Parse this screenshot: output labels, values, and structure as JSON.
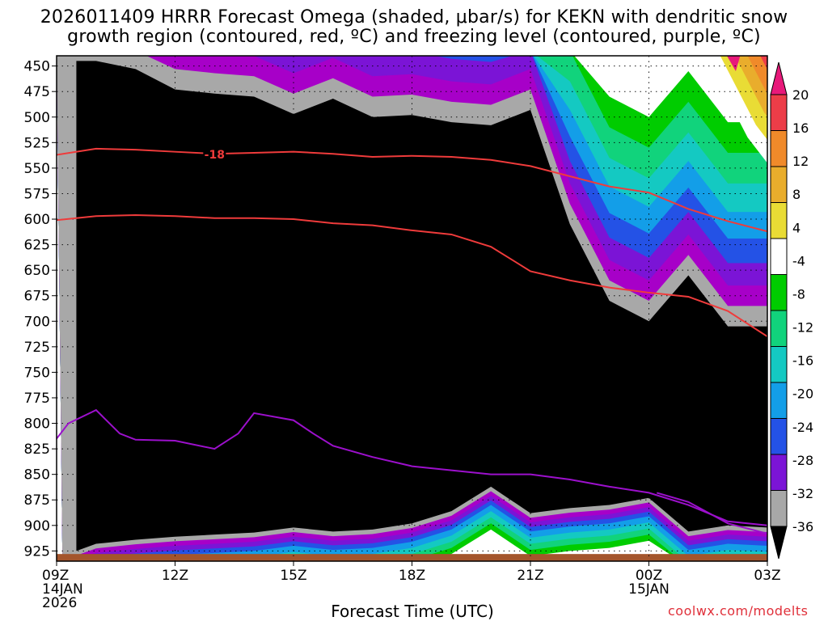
{
  "chart_data": {
    "type": "time-height contour",
    "title_line1": "2026011409 HRRR Forecast Omega (shaded, μbar/s) for KEKN with dendritic snow",
    "title_line2": "growth region (contoured, red, ºC) and freezing level (contoured, purple, ºC)",
    "xlabel": "Forecast Time (UTC)",
    "credit": "coolwx.com/modelts",
    "x_hours": [
      9,
      27
    ],
    "y_range_hpa": [
      440,
      935
    ],
    "y_ticks": [
      "450",
      "475",
      "500",
      "525",
      "550",
      "575",
      "600",
      "625",
      "650",
      "675",
      "700",
      "725",
      "750",
      "775",
      "800",
      "825",
      "850",
      "875",
      "900",
      "925"
    ],
    "x_ticks": [
      {
        "hour": 9,
        "label": "09Z",
        "sub": [
          "14JAN",
          "2026"
        ]
      },
      {
        "hour": 12,
        "label": "12Z",
        "sub": []
      },
      {
        "hour": 15,
        "label": "15Z",
        "sub": []
      },
      {
        "hour": 18,
        "label": "18Z",
        "sub": []
      },
      {
        "hour": 21,
        "label": "21Z",
        "sub": []
      },
      {
        "hour": 24,
        "label": "00Z",
        "sub": [
          "15JAN"
        ]
      },
      {
        "hour": 27,
        "label": "03Z",
        "sub": []
      }
    ],
    "colorbar": {
      "labels": [
        "20",
        "16",
        "12",
        "8",
        "4",
        "-4",
        "-8",
        "-12",
        "-16",
        "-20",
        "-24",
        "-28",
        "-32",
        "-36"
      ],
      "colors": [
        "#ec3d48",
        "#f08a2a",
        "#e9ad2c",
        "#e9dc35",
        "#ffffff",
        "#00cc00",
        "#11d37c",
        "#14c9c2",
        "#139ee8",
        "#2452e6",
        "#7b14d6",
        "#a700c8",
        "#a8a8a8",
        "#000000"
      ],
      "top_tri_color": "#e8197a",
      "bottom_tri_color": "#000000"
    },
    "ground_color": "#a4552c",
    "contour_minus18_label": "-18",
    "dgz_top_hpa": [
      [
        9,
        537
      ],
      [
        10,
        531
      ],
      [
        11,
        532
      ],
      [
        12,
        534
      ],
      [
        13,
        536
      ],
      [
        14,
        535
      ],
      [
        15,
        534
      ],
      [
        16,
        536
      ],
      [
        17,
        539
      ],
      [
        18,
        538
      ],
      [
        19,
        539
      ],
      [
        20,
        542
      ],
      [
        21,
        548
      ],
      [
        22,
        558
      ],
      [
        23,
        568
      ],
      [
        24,
        574
      ],
      [
        25,
        590
      ],
      [
        26,
        602
      ],
      [
        27,
        612
      ]
    ],
    "dgz_bottom_hpa": [
      [
        9,
        601
      ],
      [
        10,
        597
      ],
      [
        11,
        596
      ],
      [
        12,
        597
      ],
      [
        13,
        599
      ],
      [
        14,
        599
      ],
      [
        15,
        600
      ],
      [
        16,
        604
      ],
      [
        17,
        606
      ],
      [
        18,
        611
      ],
      [
        19,
        615
      ],
      [
        20,
        627
      ],
      [
        21,
        651
      ],
      [
        22,
        660
      ],
      [
        23,
        667
      ],
      [
        24,
        672
      ],
      [
        25,
        676
      ],
      [
        26,
        690
      ],
      [
        27,
        715
      ]
    ],
    "freezing_level_hpa": [
      [
        9,
        815
      ],
      [
        9.3,
        800
      ],
      [
        10,
        787
      ],
      [
        10.6,
        810
      ],
      [
        11,
        816
      ],
      [
        12,
        817
      ],
      [
        13,
        825
      ],
      [
        13.6,
        810
      ],
      [
        14,
        790
      ],
      [
        15,
        797
      ],
      [
        15.5,
        810
      ],
      [
        16,
        822
      ],
      [
        17,
        833
      ],
      [
        18,
        842
      ],
      [
        19,
        846
      ],
      [
        20,
        850
      ],
      [
        21,
        850
      ],
      [
        22,
        855
      ],
      [
        23,
        862
      ],
      [
        24,
        868
      ],
      [
        25,
        880
      ],
      [
        26,
        896
      ],
      [
        27,
        900
      ]
    ],
    "freezing_level_2_hpa": [
      [
        24.2,
        868
      ],
      [
        25,
        877
      ],
      [
        26,
        898
      ],
      [
        27,
        908
      ]
    ],
    "omega_black_top_hpa": [
      [
        9.5,
        445
      ],
      [
        10,
        445
      ],
      [
        11,
        453
      ],
      [
        12,
        473
      ],
      [
        13,
        477
      ],
      [
        14,
        480
      ],
      [
        15,
        497
      ],
      [
        16,
        482
      ],
      [
        17,
        500
      ],
      [
        18,
        498
      ],
      [
        19,
        505
      ],
      [
        20,
        508
      ],
      [
        21,
        493
      ],
      [
        22,
        605
      ],
      [
        23,
        680
      ],
      [
        24,
        700
      ],
      [
        25,
        655
      ],
      [
        26,
        705
      ],
      [
        27,
        705
      ]
    ],
    "omega_black_bottom_hpa": [
      [
        9.5,
        925
      ],
      [
        10,
        918
      ],
      [
        11,
        914
      ],
      [
        12,
        911
      ],
      [
        13,
        909
      ],
      [
        14,
        907
      ],
      [
        15,
        902
      ],
      [
        16,
        906
      ],
      [
        17,
        904
      ],
      [
        18,
        898
      ],
      [
        19,
        886
      ],
      [
        20,
        862
      ],
      [
        21,
        888
      ],
      [
        22,
        883
      ],
      [
        23,
        880
      ],
      [
        24,
        873
      ],
      [
        25,
        906
      ],
      [
        26,
        900
      ],
      [
        27,
        902
      ]
    ],
    "positive_omega_max_hpa": [
      [
        25.5,
        445
      ],
      [
        26.5,
        520
      ],
      [
        27,
        545
      ]
    ]
  }
}
